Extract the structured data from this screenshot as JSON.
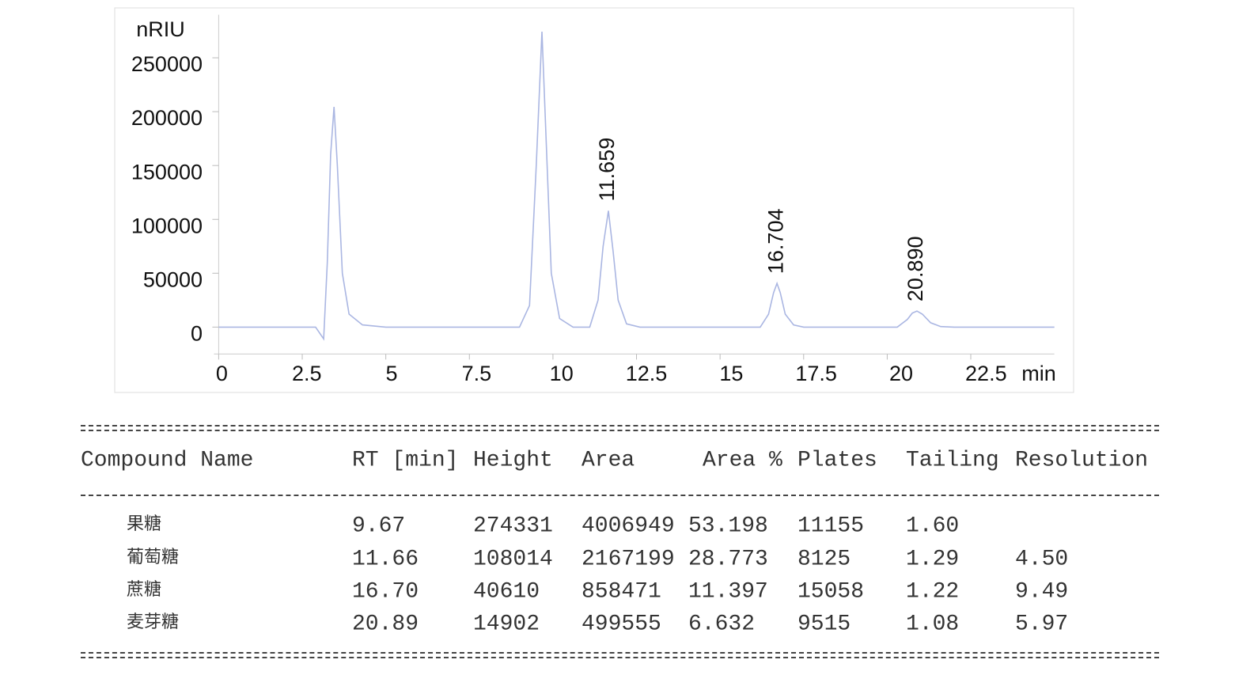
{
  "chart_data": {
    "type": "line",
    "y_label": "nRIU",
    "x_label": "min",
    "color": "#aab6e2",
    "xlim": [
      0,
      25
    ],
    "xticks": [
      0,
      2.5,
      5,
      7.5,
      10,
      12.5,
      15,
      17.5,
      20,
      22.5
    ],
    "ylim": [
      -25000,
      290000
    ],
    "yticks": [
      0,
      50000,
      100000,
      150000,
      200000,
      250000
    ],
    "grid": false,
    "x": [
      0,
      2.9,
      3.14,
      3.25,
      3.35,
      3.45,
      3.55,
      3.7,
      3.9,
      4.3,
      5,
      9.0,
      9.3,
      9.5,
      9.67,
      9.8,
      9.95,
      10.2,
      10.6,
      11.1,
      11.35,
      11.5,
      11.659,
      11.8,
      11.95,
      12.2,
      12.6,
      16.2,
      16.45,
      16.6,
      16.704,
      16.8,
      16.95,
      17.2,
      17.5,
      20.3,
      20.6,
      20.75,
      20.89,
      21.05,
      21.3,
      21.6,
      22,
      25
    ],
    "values": [
      0,
      0,
      -11000,
      60000,
      160000,
      204400,
      150000,
      50000,
      12000,
      2000,
      0,
      0,
      20000,
      150000,
      274300,
      170000,
      50000,
      8000,
      0,
      0,
      25000,
      75000,
      108000,
      70000,
      25000,
      3000,
      0,
      0,
      12000,
      32000,
      40600,
      32000,
      12000,
      2000,
      0,
      0,
      7000,
      13000,
      14900,
      12000,
      4000,
      500,
      0,
      0
    ],
    "annotations": [
      {
        "label": "11.659",
        "x": 11.659
      },
      {
        "label": "16.704",
        "x": 16.704
      },
      {
        "label": "20.890",
        "x": 20.89
      }
    ]
  },
  "table": {
    "headers": [
      "Compound Name",
      "RT [min]",
      "Height",
      "Area",
      "Area %",
      "Plates",
      "Tailing",
      "Resolution"
    ],
    "rows": [
      [
        "果糖",
        "9.67",
        "274331",
        "4006949",
        "53.198",
        "11155",
        "1.60",
        null
      ],
      [
        "葡萄糖",
        "11.66",
        "108014",
        "2167199",
        "28.773",
        "8125",
        "1.29",
        "4.50"
      ],
      [
        "蔗糖",
        "16.70",
        "40610",
        "858471",
        "11.397",
        "15058",
        "1.22",
        "9.49"
      ],
      [
        "麦芽糖",
        "20.89",
        "14902",
        "499555",
        "6.632",
        "9515",
        "1.08",
        "5.97"
      ]
    ]
  }
}
